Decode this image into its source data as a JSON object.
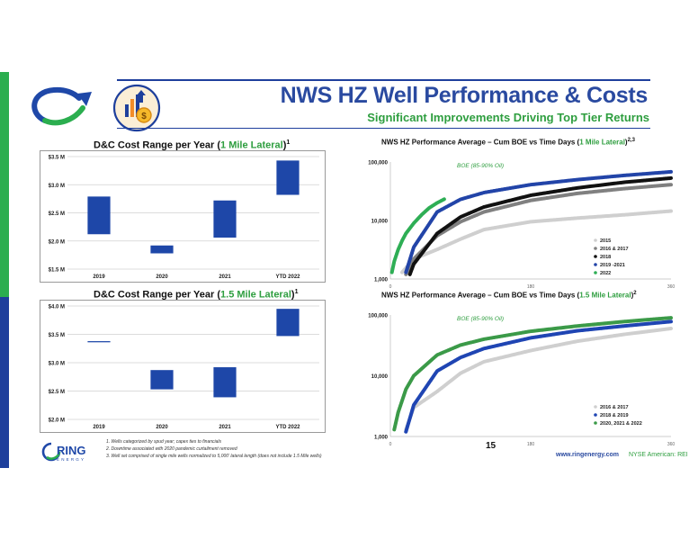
{
  "header": {
    "title": "NWS HZ Well Performance & Costs",
    "subtitle": "Significant Improvements Driving Top Tier Returns"
  },
  "colors": {
    "brand_blue": "#1e3f9c",
    "brand_green": "#2e9e3f",
    "bar_blue": "#1e47a8"
  },
  "icons": [
    "company-arrow-logo-icon",
    "finance-growth-icon",
    "ring-energy-logo"
  ],
  "logo": {
    "text": "RING",
    "tagline": "ENERGY"
  },
  "footnotes": [
    "1.   Wells categorized by spud year; capex ties to financials",
    "2.   Downtime associated with 2020 pandemic curtailment removed",
    "3.   Well set comprised of single mile wells normalized to 5,000' lateral length (does not include 1.5 Mile wells)"
  ],
  "footer": {
    "page_number": "15",
    "website": "www.ringenergy.com",
    "exchange": "NYSE American: REI"
  },
  "chart_data": [
    {
      "id": "dc-1mile",
      "type": "floating-bar",
      "title_parts": [
        "D&C Cost Range per Year (",
        "1 Mile Lateral",
        ")",
        "1"
      ],
      "categories": [
        "2019",
        "2020",
        "2021",
        "YTD 2022"
      ],
      "ranges": [
        [
          2.12,
          2.79
        ],
        [
          1.78,
          1.92
        ],
        [
          2.06,
          2.72
        ],
        [
          2.82,
          3.43
        ]
      ],
      "y_ticks": [
        "$1.5 M",
        "$2.0 M",
        "$2.5 M",
        "$3.0 M",
        "$3.5 M"
      ],
      "y_tick_values": [
        1.5,
        2.0,
        2.5,
        3.0,
        3.5
      ],
      "ylim": [
        1.5,
        3.5
      ]
    },
    {
      "id": "dc-15mile",
      "type": "floating-bar",
      "title_parts": [
        "D&C Cost Range per Year (",
        "1.5 Mile Lateral",
        ")",
        "1"
      ],
      "categories": [
        "2019",
        "2020",
        "2021",
        "YTD 2022"
      ],
      "ranges": [
        [
          3.36,
          3.38
        ],
        [
          2.53,
          2.87
        ],
        [
          2.39,
          2.92
        ],
        [
          3.47,
          3.95
        ]
      ],
      "y_ticks": [
        "$2.0 M",
        "$2.5 M",
        "$3.0 M",
        "$3.5 M",
        "$4.0 M"
      ],
      "y_tick_values": [
        2.0,
        2.5,
        3.0,
        3.5,
        4.0
      ],
      "ylim": [
        2.0,
        4.0
      ]
    },
    {
      "id": "cum-boe-1mile",
      "type": "line",
      "title_parts": [
        "NWS HZ Performance Average – Cum BOE vs Time Days (",
        "1 Mile Lateral",
        ")",
        "2,3"
      ],
      "annotation": "BOE (85-90% Oil)",
      "y_scale": "log",
      "ylim": [
        1000,
        100000
      ],
      "y_ticks": [
        "1,000",
        "10,000",
        "100,000"
      ],
      "y_tick_values": [
        1000,
        10000,
        100000
      ],
      "xlim": [
        0,
        360
      ],
      "x_ticks": [
        "0",
        "180",
        "360"
      ],
      "x_tick_values": [
        0,
        180,
        360
      ],
      "series": [
        {
          "name": "2015",
          "color": "#cfcfcf",
          "x": [
            15,
            30,
            60,
            90,
            120,
            180,
            240,
            300,
            360
          ],
          "y": [
            1300,
            2200,
            3200,
            4800,
            7000,
            9500,
            11000,
            12500,
            14500
          ]
        },
        {
          "name": "2016 & 2017",
          "color": "#808080",
          "x": [
            20,
            30,
            60,
            90,
            120,
            180,
            240,
            300,
            360
          ],
          "y": [
            1200,
            2200,
            5500,
            9500,
            14000,
            22000,
            29000,
            35000,
            41000
          ]
        },
        {
          "name": "2018",
          "color": "#111111",
          "x": [
            25,
            30,
            60,
            90,
            120,
            180,
            240,
            300,
            360
          ],
          "y": [
            1200,
            1800,
            6000,
            11500,
            17000,
            27000,
            36000,
            45000,
            53000
          ]
        },
        {
          "name": "2019 -2021",
          "color": "#2244a8",
          "x": [
            20,
            30,
            60,
            90,
            120,
            180,
            240,
            300,
            360
          ],
          "y": [
            1300,
            3500,
            14000,
            23000,
            30000,
            41000,
            50000,
            59000,
            68000
          ]
        },
        {
          "name": "2022",
          "color": "#2eae55",
          "x": [
            2,
            5,
            10,
            15,
            20,
            30,
            40,
            50,
            60,
            70
          ],
          "y": [
            1300,
            2000,
            3200,
            4500,
            6000,
            9000,
            12500,
            16500,
            20000,
            23500
          ]
        }
      ]
    },
    {
      "id": "cum-boe-15mile",
      "type": "line",
      "title_parts": [
        "NWS HZ Performance Average – Cum BOE vs Time Days (",
        "1.5 Mile Lateral",
        ")",
        "2"
      ],
      "annotation": "BOE (85-90% Oil)",
      "y_scale": "log",
      "ylim": [
        1000,
        100000
      ],
      "y_ticks": [
        "1,000",
        "10,000",
        "100,000"
      ],
      "y_tick_values": [
        1000,
        10000,
        100000
      ],
      "xlim": [
        0,
        360
      ],
      "x_ticks": [
        "0",
        "180",
        "360"
      ],
      "x_tick_values": [
        0,
        180,
        360
      ],
      "series": [
        {
          "name": "2016 & 2017",
          "color": "#cfcfcf",
          "x": [
            20,
            30,
            60,
            90,
            120,
            180,
            240,
            300,
            360
          ],
          "y": [
            1300,
            3000,
            5500,
            11000,
            17000,
            26000,
            37000,
            48000,
            60000
          ]
        },
        {
          "name": "2018 & 2019",
          "color": "#1f45b3",
          "x": [
            20,
            30,
            60,
            90,
            120,
            180,
            240,
            300,
            360
          ],
          "y": [
            1200,
            3300,
            12000,
            20000,
            28000,
            42000,
            55000,
            66000,
            78000
          ]
        },
        {
          "name": "2020, 2021 & 2022",
          "color": "#3b9a48",
          "x": [
            5,
            10,
            20,
            30,
            60,
            90,
            120,
            180,
            240,
            300,
            360
          ],
          "y": [
            1300,
            2500,
            6000,
            10000,
            22000,
            32000,
            40000,
            54000,
            66000,
            78000,
            90000
          ]
        }
      ]
    }
  ]
}
